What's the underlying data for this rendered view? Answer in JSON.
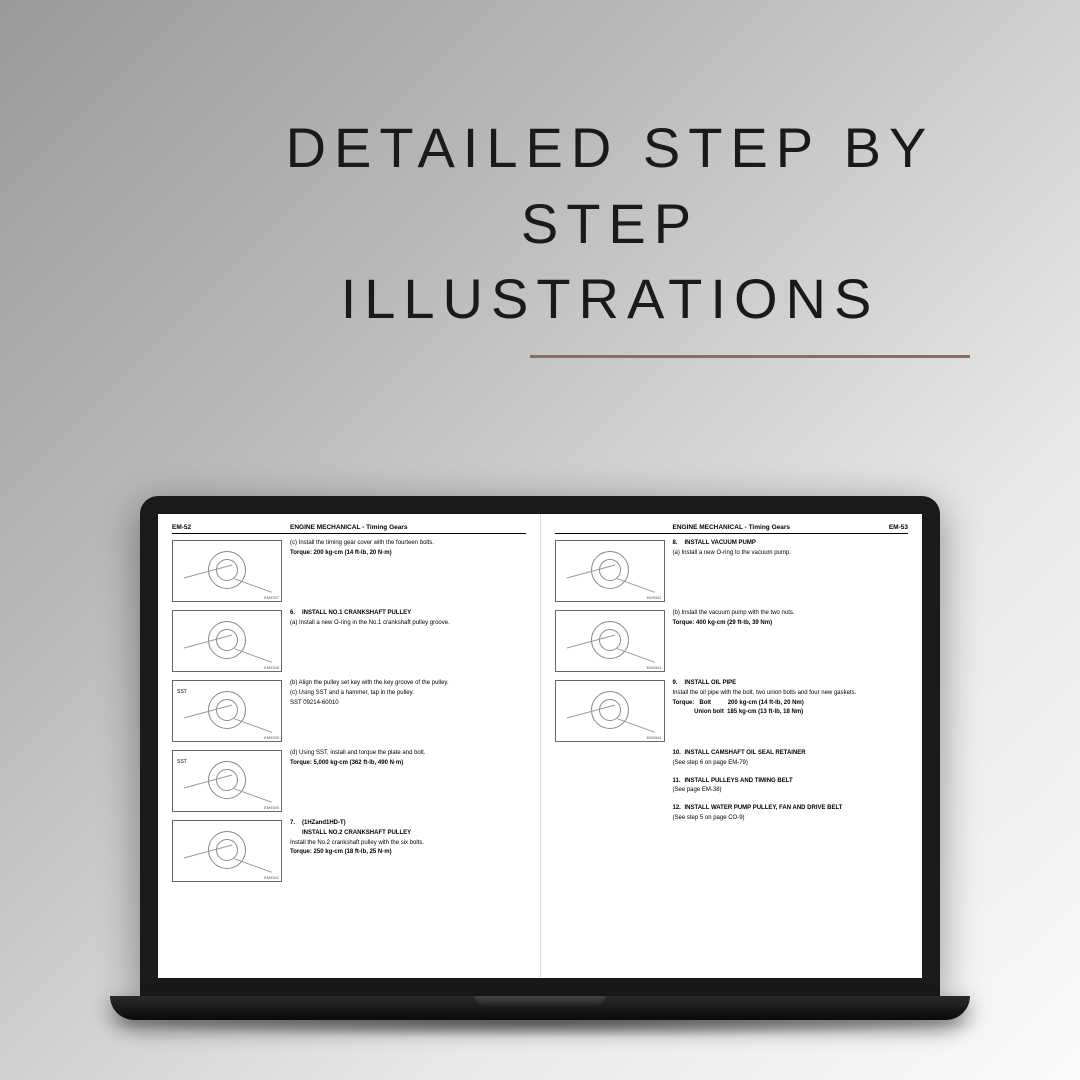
{
  "headline": {
    "line1": "DETAILED STEP BY STEP",
    "line2": "ILLUSTRATIONS"
  },
  "colors": {
    "bg_gradient_start": "#9a9a9a",
    "bg_gradient_end": "#fafafa",
    "underline": "#8b6f5c",
    "laptop_frame": "#1a1a1a",
    "text": "#1a1a1a"
  },
  "leftPage": {
    "pageNum": "EM-52",
    "header": "ENGINE MECHANICAL - Timing Gears",
    "sections": [
      {
        "illus_code": "EM9337",
        "lines": [
          "(c)  Install the timing gear cover with the fourteen bolts.",
          "<b>Torque:   200 kg-cm (14 ft-lb, 20 N·m)</b>"
        ]
      },
      {
        "illus_code": "EM9338",
        "num": "6.",
        "title": "INSTALL NO.1 CRANKSHAFT PULLEY",
        "lines": [
          "(a)  Install a new O-ring in the No.1 crankshaft pulley groove."
        ]
      },
      {
        "illus_code": "EM9339",
        "sst": "SST",
        "lines": [
          "(b)  Align the pulley set key with the key groove of the pulley.",
          "(c)  Using SST and a hammer, tap in the pulley.",
          "SST 09214-60010"
        ]
      },
      {
        "illus_code": "EM9340",
        "sst": "SST",
        "lines": [
          "(d)  Using SST, install and torque the plate and bolt.",
          "<b>Torque:   5,000 kg-cm (362 ft-lb, 490 N·m)</b>"
        ]
      },
      {
        "illus_code": "EM9341",
        "num": "7.",
        "title": "(1HZand1HD-T)",
        "title2": "INSTALL NO.2 CRANKSHAFT PULLEY",
        "lines": [
          "Install the No.2 crankshaft pulley with the six bolts.",
          "<b>Torque:   250 kg-cm (18 ft-lb, 25 N·m)</b>"
        ]
      }
    ]
  },
  "rightPage": {
    "pageNum": "EM-53",
    "header": "ENGINE MECHANICAL - Timing Gears",
    "sections": [
      {
        "illus_code": "EM9342",
        "num": "8.",
        "title": "INSTALL VACUUM PUMP",
        "lines": [
          "(a)  Install a new O-ring to the vacuum pump."
        ]
      },
      {
        "illus_code": "EM9343",
        "lines": [
          "(b)  Install the vacuum pump with the two nuts.",
          "<b>Torque:   400 kg-cm (29 ft-lb, 39 Nm)</b>"
        ]
      },
      {
        "illus_code": "EM9344",
        "num": "9.",
        "title": "INSTALL OIL PIPE",
        "lines": [
          "Install the oil pipe with the bolt, two union bolts and four new gaskets.",
          "<b>Torque:&nbsp;&nbsp;&nbsp;Bolt&nbsp;&nbsp;&nbsp;&nbsp;&nbsp;&nbsp;&nbsp;&nbsp;&nbsp;&nbsp;200 kg-cm (14 ft-lb, 20 Nm)</b>",
          "<b>&nbsp;&nbsp;&nbsp;&nbsp;&nbsp;&nbsp;&nbsp;&nbsp;&nbsp;&nbsp;&nbsp;&nbsp;&nbsp;Union bolt&nbsp;&nbsp;185 kg-cm (13 ft-lb, 18 Nm)</b>"
        ]
      },
      {
        "noillus": true,
        "num": "10.",
        "title": "INSTALL CAMSHAFT OIL SEAL RETAINER",
        "lines": [
          "(See step 6 on page EM-79)"
        ]
      },
      {
        "noillus": true,
        "num": "11.",
        "title": "INSTALL PULLEYS AND TIMING BELT",
        "lines": [
          "(See page EM-38)"
        ]
      },
      {
        "noillus": true,
        "num": "12.",
        "title": "INSTALL WATER PUMP PULLEY, FAN AND DRIVE BELT",
        "lines": [
          "(See step 5 on page CO-9)"
        ]
      }
    ]
  }
}
